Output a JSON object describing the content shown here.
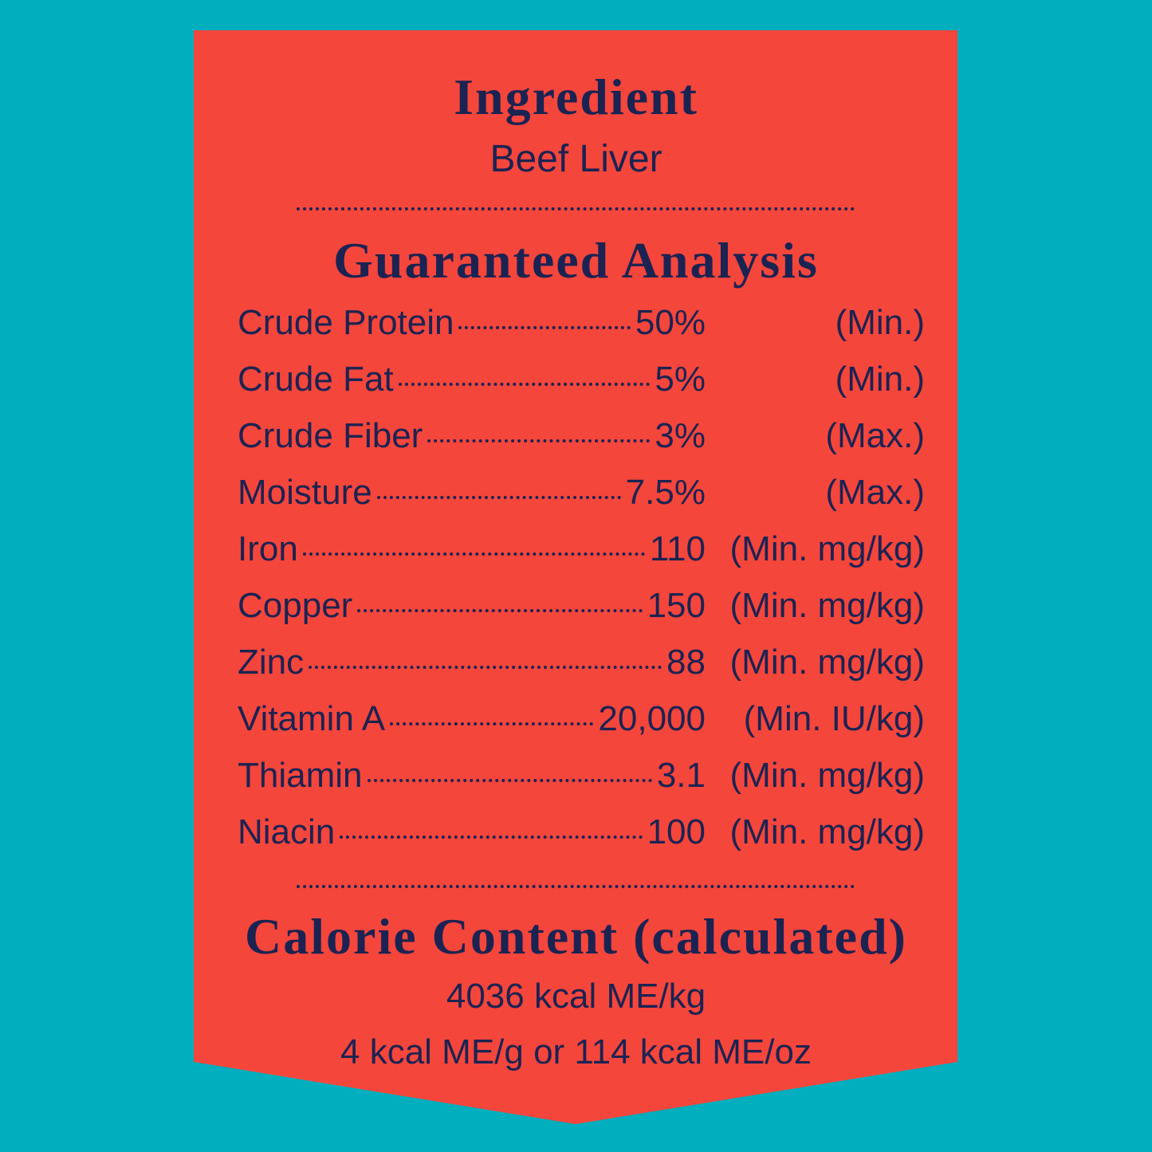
{
  "header": {
    "title": "Ingredient",
    "subtitle": "Beef Liver"
  },
  "analysis": {
    "title": "Guaranteed Analysis",
    "rows": [
      {
        "name": "Crude Protein",
        "value": "50%",
        "unit": "(Min.)"
      },
      {
        "name": "Crude Fat",
        "value": "5%",
        "unit": "(Min.)"
      },
      {
        "name": "Crude Fiber",
        "value": "3%",
        "unit": "(Max.)"
      },
      {
        "name": "Moisture",
        "value": "7.5%",
        "unit": "(Max.)"
      },
      {
        "name": "Iron",
        "value": "110",
        "unit": "(Min. mg/kg)"
      },
      {
        "name": "Copper",
        "value": "150",
        "unit": "(Min. mg/kg)"
      },
      {
        "name": "Zinc",
        "value": "88",
        "unit": "(Min. mg/kg)"
      },
      {
        "name": "Vitamin A",
        "value": "20,000",
        "unit": "(Min. IU/kg)"
      },
      {
        "name": "Thiamin",
        "value": "3.1",
        "unit": "(Min. mg/kg)"
      },
      {
        "name": "Niacin",
        "value": "100",
        "unit": "(Min. mg/kg)"
      }
    ]
  },
  "calories": {
    "title": "Calorie Content (calculated)",
    "lines": [
      "4036 kcal ME/kg",
      "4 kcal ME/g or 114 kcal ME/oz"
    ]
  }
}
